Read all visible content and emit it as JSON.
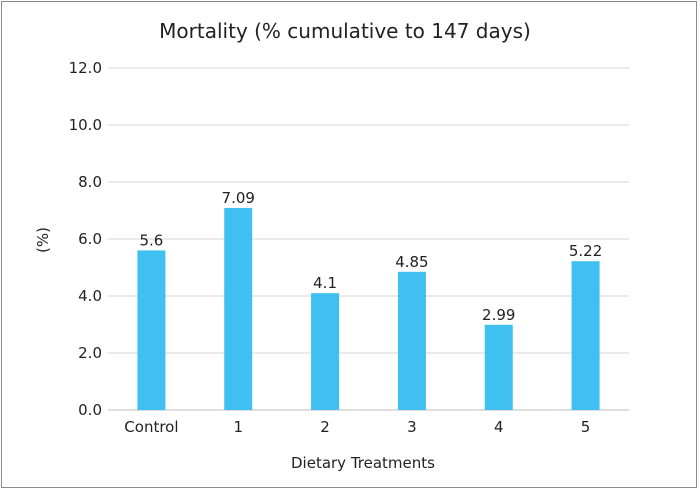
{
  "chart_data": {
    "type": "bar",
    "title": "Mortality  (% cumulative to 147 days)",
    "xlabel": "Dietary Treatments",
    "ylabel": "(%)",
    "categories": [
      "Control",
      "1",
      "2",
      "3",
      "4",
      "5"
    ],
    "values": [
      5.6,
      7.09,
      4.1,
      4.85,
      2.99,
      5.22
    ],
    "data_labels": [
      "5.6",
      "7.09",
      "4.1",
      "4.85",
      "2.99",
      "5.22"
    ],
    "ylim": [
      0,
      12
    ],
    "yticks": [
      "0.0",
      "2.0",
      "4.0",
      "6.0",
      "8.0",
      "10.0",
      "12.0"
    ],
    "grid": true,
    "bar_color": "#40c0f0",
    "grid_color": "#d4d4d4"
  }
}
